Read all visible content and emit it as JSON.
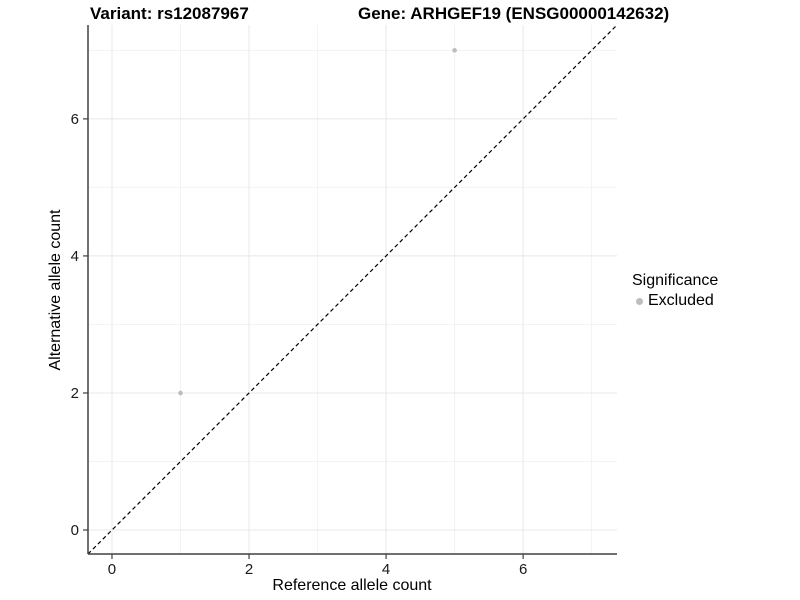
{
  "header": {
    "left_title": "Variant: rs12087967",
    "right_title": "Gene: ARHGEF19 (ENSG00000142632)"
  },
  "chart_data": {
    "type": "scatter",
    "title": "Variant: rs12087967 / Gene: ARHGEF19 (ENSG00000142632)",
    "xlabel": "Reference allele count",
    "ylabel": "Alternative allele count",
    "xlim": [
      -0.35,
      7.37
    ],
    "ylim": [
      -0.35,
      7.37
    ],
    "x_ticks": [
      0,
      2,
      4,
      6
    ],
    "y_ticks": [
      0,
      2,
      4,
      6
    ],
    "x_minor_ticks": [
      1,
      3,
      5,
      7
    ],
    "y_minor_ticks": [
      1,
      3,
      5,
      7
    ],
    "grid": true,
    "series": [
      {
        "name": "Excluded",
        "color": "#bdbdbd",
        "point_radius": 2.3,
        "points": [
          [
            1,
            2
          ],
          [
            5,
            7
          ]
        ]
      }
    ],
    "reference_line": {
      "type": "identity",
      "style": "dashed",
      "color": "#000000",
      "from": [
        -0.35,
        -0.35
      ],
      "to": [
        7.37,
        7.37
      ]
    },
    "legend": {
      "title": "Significance",
      "position": "right",
      "items": [
        {
          "label": "Excluded",
          "color": "#bdbdbd"
        }
      ]
    }
  },
  "colors": {
    "background": "#ffffff",
    "grid_major": "#e8e8e8",
    "grid_minor": "#f3f3f3",
    "axis_line": "#404040",
    "tick_text": "#1a1a1a",
    "point": "#bdbdbd"
  }
}
